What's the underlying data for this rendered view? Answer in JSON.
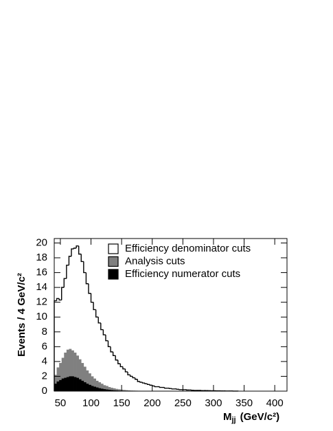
{
  "chart_data": {
    "type": "histogram",
    "ylabel": "Events / 4 GeV/c²",
    "xlabel": {
      "main": "M",
      "sub": "jj",
      "unit": "(GeV/c²)"
    },
    "bins": [
      40,
      44,
      48,
      52,
      56,
      60,
      64,
      68,
      72,
      76,
      80,
      84,
      88,
      92,
      96,
      100,
      104,
      108,
      112,
      116,
      120,
      124,
      128,
      132,
      136,
      140,
      144,
      148,
      152,
      156,
      160,
      164,
      168,
      172,
      176,
      180,
      184,
      188,
      192,
      196,
      200,
      204,
      208,
      212,
      216,
      220,
      224,
      228,
      232,
      236,
      240,
      244,
      248,
      252,
      256,
      260,
      264,
      268,
      272,
      276,
      280,
      284,
      288,
      292,
      296,
      300,
      304,
      308,
      312,
      316,
      320,
      324,
      328,
      332,
      336,
      340
    ],
    "series": [
      {
        "name": "Efficiency denominator cuts",
        "color": "#ffffff",
        "style": "outline",
        "values": [
          12.2,
          12.5,
          12.3,
          14,
          15.2,
          17,
          18.2,
          19.2,
          19.3,
          19.6,
          18.5,
          17.5,
          16,
          14.5,
          13.2,
          12,
          11,
          10,
          9.2,
          8.3,
          7.6,
          6.8,
          6,
          5.3,
          4.8,
          4.2,
          3.7,
          3.3,
          3,
          2.6,
          2.2,
          2,
          1.8,
          1.6,
          1.3,
          1.2,
          1.1,
          1,
          0.9,
          0.8,
          0.7,
          0.6,
          0.6,
          0.5,
          0.5,
          0.4,
          0.4,
          0.35,
          0.3,
          0.3,
          0.25,
          0.2,
          0.2,
          0.2,
          0.15,
          0.15,
          0.12,
          0.1,
          0.1,
          0.1,
          0.08,
          0.08,
          0.07,
          0.06,
          0.05,
          0.05,
          0.04,
          0.04,
          0.03,
          0.03,
          0.02,
          0.02,
          0.02,
          0.01,
          0.01
        ]
      },
      {
        "name": "Analysis cuts",
        "color": "#808080",
        "style": "filled",
        "values": [
          2.2,
          3.2,
          3.8,
          4.5,
          5.2,
          5.6,
          5.7,
          5.5,
          5.2,
          4.8,
          4.3,
          3.8,
          3.3,
          2.8,
          2.4,
          2,
          1.7,
          1.4,
          1.2,
          1,
          0.8,
          0.7,
          0.55,
          0.45,
          0.38,
          0.3,
          0.25,
          0.2,
          0.16,
          0.13,
          0.1,
          0.08,
          0.07,
          0.06,
          0.05,
          0.04,
          0.03,
          0.03,
          0.02,
          0.02,
          0.01,
          0,
          0,
          0,
          0,
          0,
          0,
          0,
          0,
          0,
          0,
          0,
          0,
          0,
          0,
          0,
          0,
          0,
          0,
          0,
          0,
          0,
          0,
          0,
          0,
          0,
          0,
          0,
          0,
          0,
          0,
          0,
          0,
          0,
          0
        ]
      },
      {
        "name": "Efficiency numerator cuts",
        "color": "#000000",
        "style": "filled",
        "values": [
          1,
          1.3,
          1.5,
          1.7,
          1.8,
          1.9,
          2,
          2,
          1.9,
          1.8,
          1.6,
          1.4,
          1.2,
          1,
          0.85,
          0.7,
          0.6,
          0.5,
          0.4,
          0.33,
          0.27,
          0.22,
          0.18,
          0.14,
          0.11,
          0.09,
          0.07,
          0.05,
          0.04,
          0.03,
          0.02,
          0.02,
          0.01,
          0.01,
          0,
          0,
          0,
          0,
          0,
          0,
          0,
          0,
          0,
          0,
          0,
          0,
          0,
          0,
          0,
          0,
          0,
          0,
          0,
          0,
          0,
          0,
          0,
          0,
          0,
          0,
          0,
          0,
          0,
          0,
          0,
          0,
          0,
          0,
          0,
          0,
          0,
          0,
          0,
          0,
          0
        ]
      }
    ],
    "xlim": [
      40,
      420
    ],
    "ylim": [
      0,
      20.6
    ],
    "xticks": [
      50,
      100,
      150,
      200,
      250,
      300,
      350,
      400
    ],
    "yticks": [
      0,
      2,
      4,
      6,
      8,
      10,
      12,
      14,
      16,
      18,
      20
    ],
    "legend": "upper-center"
  }
}
